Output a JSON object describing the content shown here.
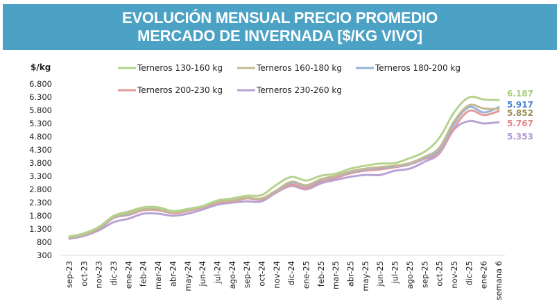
{
  "header": {
    "title_line1": "EVOLUCIÓN MENSUAL PRECIO PROMEDIO",
    "title_line2": "MERCADO DE INVERNADA [$/KG VIVO]",
    "background_color": "#4ba2c5"
  },
  "chart_data": {
    "type": "line",
    "title": "EVOLUCIÓN MENSUAL PRECIO PROMEDIO MERCADO DE INVERNADA [$/KG VIVO]",
    "xlabel": "",
    "ylabel": "$/kg",
    "ylim": [
      300,
      6800
    ],
    "yticks": [
      300,
      800,
      1300,
      1800,
      2300,
      2800,
      3300,
      3800,
      4300,
      4800,
      5300,
      5800,
      6300,
      6800
    ],
    "ytick_labels": [
      "300",
      "800",
      "1.300",
      "1.800",
      "2.300",
      "2.800",
      "3.300",
      "3.800",
      "4.300",
      "4.800",
      "5.300",
      "5.800",
      "6.300",
      "6.800"
    ],
    "grid": false,
    "legend_position": "top",
    "categories": [
      "sep-23",
      "oct-23",
      "nov-23",
      "dic-23",
      "ene-24",
      "feb-24",
      "mar-24",
      "abr-24",
      "may-24",
      "jun-24",
      "jul-24",
      "ago-24",
      "sep-24",
      "oct-24",
      "nov-24",
      "dic-24",
      "ene-25",
      "feb-25",
      "mar-25",
      "abr-25",
      "may-25",
      "jun-25",
      "jul-25",
      "ago-25",
      "sep-25",
      "oct-25",
      "nov-25",
      "dic-25",
      "ene-26",
      "semana 6"
    ],
    "series": [
      {
        "name": "Terneros 130-160 kg",
        "color": "#b5d38e",
        "label_color": "#a9cc7e",
        "end_label": "6.187",
        "values": [
          1010,
          1140,
          1380,
          1800,
          1960,
          2120,
          2120,
          1980,
          2060,
          2170,
          2380,
          2460,
          2560,
          2590,
          2980,
          3270,
          3140,
          3320,
          3400,
          3590,
          3700,
          3780,
          3800,
          3990,
          4230,
          4760,
          5730,
          6290,
          6210,
          6187
        ]
      },
      {
        "name": "Terneros 160-180 kg",
        "color": "#c4b992",
        "label_color": "#9a8a55",
        "end_label": "5.852",
        "values": [
          980,
          1090,
          1350,
          1770,
          1880,
          2040,
          2040,
          1930,
          2010,
          2140,
          2330,
          2380,
          2480,
          2460,
          2770,
          3090,
          2960,
          3190,
          3320,
          3490,
          3590,
          3650,
          3700,
          3800,
          4040,
          4390,
          5390,
          5990,
          5870,
          5852
        ]
      },
      {
        "name": "Terneros 180-200 kg",
        "color": "#97b3da",
        "label_color": "#4a86d4",
        "end_label": "5.917",
        "values": [
          980,
          1090,
          1330,
          1750,
          1850,
          2040,
          2040,
          1930,
          2010,
          2140,
          2330,
          2380,
          2480,
          2460,
          2750,
          3060,
          2930,
          3160,
          3300,
          3460,
          3560,
          3620,
          3670,
          3770,
          3990,
          4300,
          5300,
          5920,
          5720,
          5917
        ]
      },
      {
        "name": "Terneros 200-230 kg",
        "color": "#e39a9a",
        "label_color": "#e08888",
        "end_label": "5.767",
        "values": [
          960,
          1090,
          1300,
          1720,
          1830,
          2010,
          2010,
          1900,
          1980,
          2120,
          2300,
          2350,
          2460,
          2430,
          2720,
          2980,
          2850,
          3110,
          3240,
          3410,
          3510,
          3560,
          3640,
          3750,
          3960,
          4200,
          5140,
          5780,
          5620,
          5767
        ]
      },
      {
        "name": "Terneros 230-260 kg",
        "color": "#b9a2d4",
        "label_color": "#b39bd2",
        "end_label": "5.353",
        "values": [
          930,
          1040,
          1250,
          1560,
          1690,
          1880,
          1880,
          1800,
          1880,
          2040,
          2220,
          2300,
          2350,
          2350,
          2690,
          2930,
          2800,
          3030,
          3160,
          3280,
          3350,
          3350,
          3510,
          3590,
          3850,
          4170,
          5080,
          5390,
          5300,
          5353
        ]
      }
    ]
  }
}
